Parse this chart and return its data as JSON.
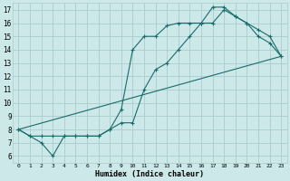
{
  "xlabel": "Humidex (Indice chaleur)",
  "bg_color": "#cce8e8",
  "grid_color": "#aacccc",
  "line_color": "#1a6b6b",
  "xlim": [
    -0.5,
    23.5
  ],
  "ylim": [
    5.5,
    17.5
  ],
  "xticks": [
    0,
    1,
    2,
    3,
    4,
    5,
    6,
    7,
    8,
    9,
    10,
    11,
    12,
    13,
    14,
    15,
    16,
    17,
    18,
    19,
    20,
    21,
    22,
    23
  ],
  "yticks": [
    6,
    7,
    8,
    9,
    10,
    11,
    12,
    13,
    14,
    15,
    16,
    17
  ],
  "line1_x": [
    0,
    1,
    2,
    3,
    4,
    5,
    6,
    7,
    8,
    9,
    10,
    11,
    12,
    13,
    14,
    15,
    16,
    17,
    18,
    19,
    20,
    21,
    22,
    23
  ],
  "line1_y": [
    8,
    7.5,
    7,
    6,
    7.5,
    7.5,
    7.5,
    7.5,
    8,
    9.5,
    14,
    15,
    15,
    15.8,
    16,
    16,
    16,
    17.2,
    17.2,
    16.5,
    16,
    15,
    14.5,
    13.5
  ],
  "line2_x": [
    0,
    1,
    2,
    3,
    4,
    5,
    6,
    7,
    8,
    9,
    10,
    11,
    12,
    13,
    14,
    15,
    16,
    17,
    18,
    19,
    20,
    21,
    22,
    23
  ],
  "line2_y": [
    8,
    7.5,
    7.5,
    7.5,
    7.5,
    7.5,
    7.5,
    7.5,
    8,
    8.5,
    8.5,
    11,
    12.5,
    13,
    14,
    15,
    16,
    16,
    17,
    16.5,
    16,
    15.5,
    15,
    13.5
  ],
  "line3_x": [
    0,
    23
  ],
  "line3_y": [
    8,
    13.5
  ]
}
